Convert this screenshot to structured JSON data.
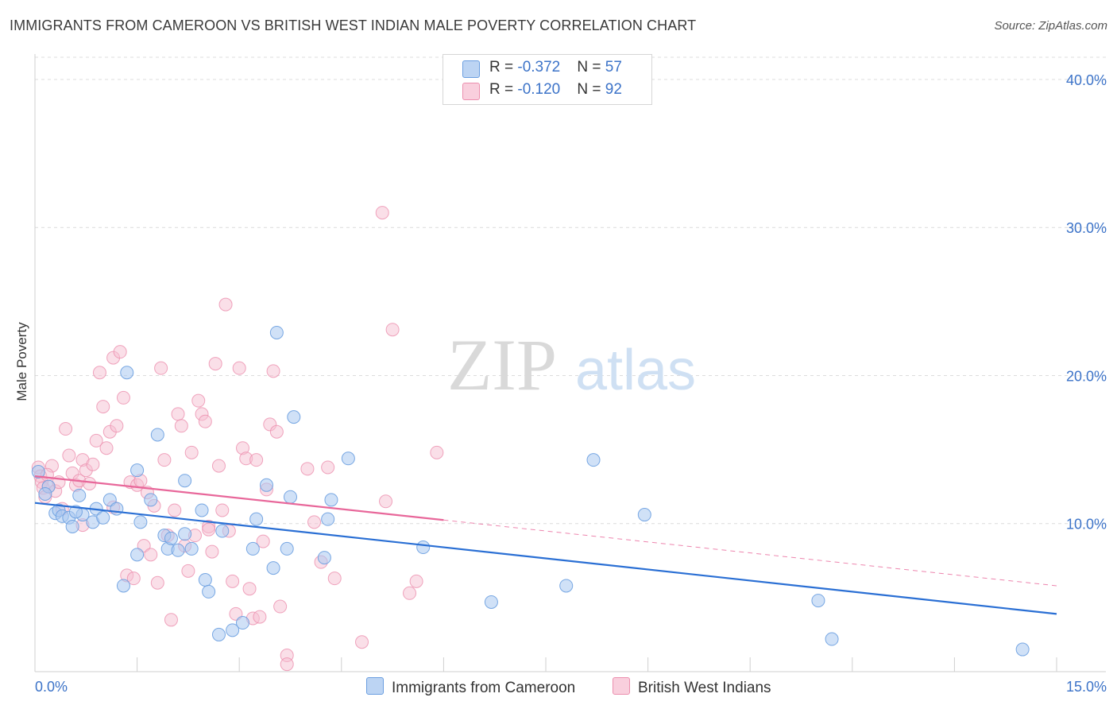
{
  "header": {
    "title": "IMMIGRANTS FROM CAMEROON VS BRITISH WEST INDIAN MALE POVERTY CORRELATION CHART",
    "source": "Source: ZipAtlas.com"
  },
  "watermark": {
    "zip": "ZIP",
    "atlas": "atlas"
  },
  "colors": {
    "blue_fill": "#a9c8f0",
    "blue_stroke": "#6a9ee0",
    "blue_line": "#2a6fd4",
    "pink_fill": "#f6bfd1",
    "pink_stroke": "#ec8fae",
    "pink_line": "#e8679a",
    "tick_label": "#3c73c8",
    "grid": "#dcdcdc"
  },
  "legend": {
    "rows": [
      {
        "r_label": "R = ",
        "r_value": "-0.372",
        "n_label": "N = ",
        "n_value": "57"
      },
      {
        "r_label": "R = ",
        "r_value": "-0.120",
        "n_label": "N = ",
        "n_value": "92"
      }
    ]
  },
  "bottom_legend": {
    "series_a": "Immigrants from Cameroon",
    "series_b": "British West Indians"
  },
  "chart_data": {
    "type": "scatter",
    "title": "IMMIGRANTS FROM CAMEROON VS BRITISH WEST INDIAN MALE POVERTY CORRELATION CHART",
    "xlabel": "",
    "ylabel": "Male Poverty",
    "xlim": [
      0,
      15
    ],
    "ylim": [
      0,
      41.5
    ],
    "x_tick_labels": [
      "0.0%",
      "15.0%"
    ],
    "y_ticks": [
      10,
      20,
      30,
      40
    ],
    "y_tick_labels": [
      "10.0%",
      "20.0%",
      "30.0%",
      "40.0%"
    ],
    "grid": true,
    "series": [
      {
        "name": "Immigrants from Cameroon",
        "r": -0.372,
        "n": 57,
        "trend": {
          "x": [
            0,
            15
          ],
          "y": [
            11.4,
            3.9
          ]
        },
        "points": [
          [
            0.05,
            13.5
          ],
          [
            0.2,
            12.5
          ],
          [
            0.3,
            10.7
          ],
          [
            0.35,
            10.9
          ],
          [
            0.4,
            10.5
          ],
          [
            0.5,
            10.4
          ],
          [
            0.55,
            9.8
          ],
          [
            0.65,
            11.9
          ],
          [
            0.7,
            10.6
          ],
          [
            0.85,
            10.1
          ],
          [
            0.9,
            11.0
          ],
          [
            1.0,
            10.4
          ],
          [
            1.1,
            11.6
          ],
          [
            1.2,
            11.0
          ],
          [
            1.3,
            5.8
          ],
          [
            1.35,
            20.2
          ],
          [
            1.5,
            7.9
          ],
          [
            1.5,
            13.6
          ],
          [
            1.55,
            10.1
          ],
          [
            1.7,
            11.6
          ],
          [
            1.8,
            16.0
          ],
          [
            1.9,
            9.2
          ],
          [
            1.95,
            8.3
          ],
          [
            2.0,
            9.0
          ],
          [
            2.1,
            8.2
          ],
          [
            2.2,
            12.9
          ],
          [
            2.2,
            9.3
          ],
          [
            2.3,
            8.3
          ],
          [
            2.45,
            10.9
          ],
          [
            2.5,
            6.2
          ],
          [
            2.55,
            5.4
          ],
          [
            2.7,
            2.5
          ],
          [
            2.75,
            9.5
          ],
          [
            2.9,
            2.8
          ],
          [
            3.05,
            3.3
          ],
          [
            3.2,
            8.3
          ],
          [
            3.25,
            10.3
          ],
          [
            3.4,
            12.6
          ],
          [
            3.5,
            7.0
          ],
          [
            3.55,
            22.9
          ],
          [
            3.7,
            8.3
          ],
          [
            3.75,
            11.8
          ],
          [
            3.8,
            17.2
          ],
          [
            4.25,
            7.7
          ],
          [
            4.3,
            10.3
          ],
          [
            4.35,
            11.6
          ],
          [
            4.6,
            14.4
          ],
          [
            5.7,
            8.4
          ],
          [
            6.7,
            4.7
          ],
          [
            7.8,
            5.8
          ],
          [
            8.2,
            14.3
          ],
          [
            8.95,
            10.6
          ],
          [
            11.5,
            4.8
          ],
          [
            11.7,
            2.2
          ],
          [
            14.5,
            1.5
          ],
          [
            0.15,
            12.0
          ],
          [
            0.6,
            10.8
          ]
        ]
      },
      {
        "name": "British West Indians",
        "r": -0.12,
        "n": 92,
        "trend": {
          "x": [
            0,
            15
          ],
          "y": [
            13.2,
            5.8
          ]
        },
        "trend_solid_until_x": 6.0,
        "points": [
          [
            0.05,
            13.8
          ],
          [
            0.08,
            13.2
          ],
          [
            0.1,
            12.8
          ],
          [
            0.12,
            12.4
          ],
          [
            0.15,
            11.8
          ],
          [
            0.2,
            12.5
          ],
          [
            0.25,
            13.9
          ],
          [
            0.3,
            12.2
          ],
          [
            0.35,
            12.8
          ],
          [
            0.4,
            11.0
          ],
          [
            0.45,
            16.4
          ],
          [
            0.5,
            14.6
          ],
          [
            0.55,
            13.4
          ],
          [
            0.6,
            12.6
          ],
          [
            0.65,
            12.9
          ],
          [
            0.7,
            14.3
          ],
          [
            0.75,
            13.6
          ],
          [
            0.8,
            12.7
          ],
          [
            0.85,
            14.0
          ],
          [
            0.9,
            15.6
          ],
          [
            0.95,
            20.2
          ],
          [
            1.0,
            17.9
          ],
          [
            1.05,
            15.1
          ],
          [
            1.1,
            16.2
          ],
          [
            1.15,
            21.2
          ],
          [
            1.2,
            16.6
          ],
          [
            1.25,
            21.6
          ],
          [
            1.3,
            18.5
          ],
          [
            1.35,
            6.5
          ],
          [
            1.4,
            12.8
          ],
          [
            1.45,
            6.3
          ],
          [
            1.5,
            12.6
          ],
          [
            1.55,
            12.9
          ],
          [
            1.6,
            8.5
          ],
          [
            1.65,
            12.1
          ],
          [
            1.7,
            7.9
          ],
          [
            1.75,
            11.2
          ],
          [
            1.8,
            6.0
          ],
          [
            1.85,
            20.5
          ],
          [
            1.9,
            14.3
          ],
          [
            1.95,
            9.2
          ],
          [
            2.0,
            3.5
          ],
          [
            2.05,
            10.9
          ],
          [
            2.1,
            17.4
          ],
          [
            2.15,
            16.6
          ],
          [
            2.2,
            8.5
          ],
          [
            2.25,
            6.8
          ],
          [
            2.3,
            14.8
          ],
          [
            2.35,
            9.2
          ],
          [
            2.4,
            18.3
          ],
          [
            2.45,
            17.4
          ],
          [
            2.5,
            16.9
          ],
          [
            2.55,
            9.8
          ],
          [
            2.6,
            8.1
          ],
          [
            2.65,
            20.8
          ],
          [
            2.7,
            13.9
          ],
          [
            2.75,
            10.9
          ],
          [
            2.8,
            24.8
          ],
          [
            2.85,
            9.5
          ],
          [
            2.9,
            6.1
          ],
          [
            2.95,
            3.9
          ],
          [
            3.0,
            20.5
          ],
          [
            3.05,
            15.1
          ],
          [
            3.1,
            14.4
          ],
          [
            3.15,
            5.6
          ],
          [
            3.2,
            3.6
          ],
          [
            3.25,
            14.3
          ],
          [
            3.3,
            3.7
          ],
          [
            3.35,
            8.8
          ],
          [
            3.4,
            12.3
          ],
          [
            3.45,
            16.7
          ],
          [
            3.5,
            20.3
          ],
          [
            3.55,
            16.2
          ],
          [
            3.6,
            4.4
          ],
          [
            3.7,
            1.1
          ],
          [
            3.7,
            0.5
          ],
          [
            4.0,
            13.7
          ],
          [
            4.1,
            10.1
          ],
          [
            4.2,
            7.4
          ],
          [
            4.3,
            13.8
          ],
          [
            4.4,
            6.3
          ],
          [
            4.8,
            2.0
          ],
          [
            5.1,
            31.0
          ],
          [
            5.15,
            11.5
          ],
          [
            5.25,
            23.1
          ],
          [
            5.5,
            5.3
          ],
          [
            5.6,
            6.1
          ],
          [
            5.9,
            14.8
          ],
          [
            0.18,
            13.3
          ],
          [
            1.15,
            11.1
          ],
          [
            2.55,
            9.6
          ],
          [
            0.7,
            9.9
          ]
        ]
      }
    ]
  }
}
